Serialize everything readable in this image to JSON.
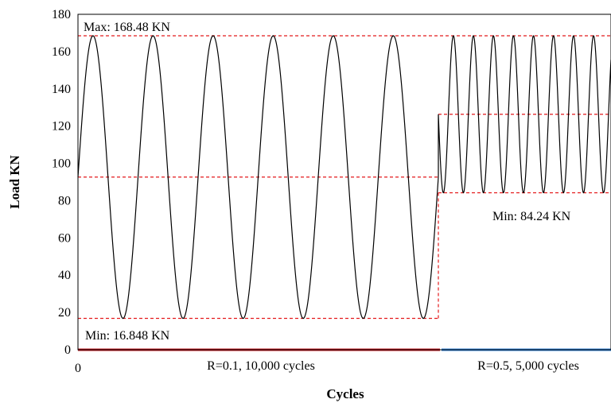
{
  "chart_data": {
    "type": "line",
    "xlabel": "Cycles",
    "ylabel": "Load KN",
    "ylim": [
      0,
      180
    ],
    "y_ticks": [
      0,
      20,
      40,
      60,
      80,
      100,
      120,
      140,
      160,
      180
    ],
    "x_tick_labels": [
      "0"
    ],
    "grid": false,
    "series": [
      {
        "segment": "R=0.1",
        "phase_label": "R=0.1, 10,000  cycles",
        "max": 168.48,
        "min": 16.848,
        "visible_oscillations": 6,
        "color": "#000000"
      },
      {
        "segment": "R=0.5",
        "phase_label": "R=0.5, 5,000  cycles",
        "max": 168.48,
        "min": 84.24,
        "visible_oscillations": 9,
        "color": "#000000"
      }
    ],
    "reference_levels": {
      "max": 168.48,
      "mean_r01": 92.664,
      "min_r01": 16.848,
      "mean_r05": 126.36,
      "min_r05": 84.24,
      "color": "#e41a1c"
    },
    "phase_bars": [
      {
        "label": "R=0.1, 10,000  cycles",
        "color": "#c0161c"
      },
      {
        "label": "R=0.5, 5,000  cycles",
        "color": "#2e7fd6"
      }
    ],
    "annotations": {
      "max": "Max: 168.48 KN",
      "min_r01": "Min: 16.848 KN",
      "min_r05": "Min: 84.24 KN"
    }
  }
}
